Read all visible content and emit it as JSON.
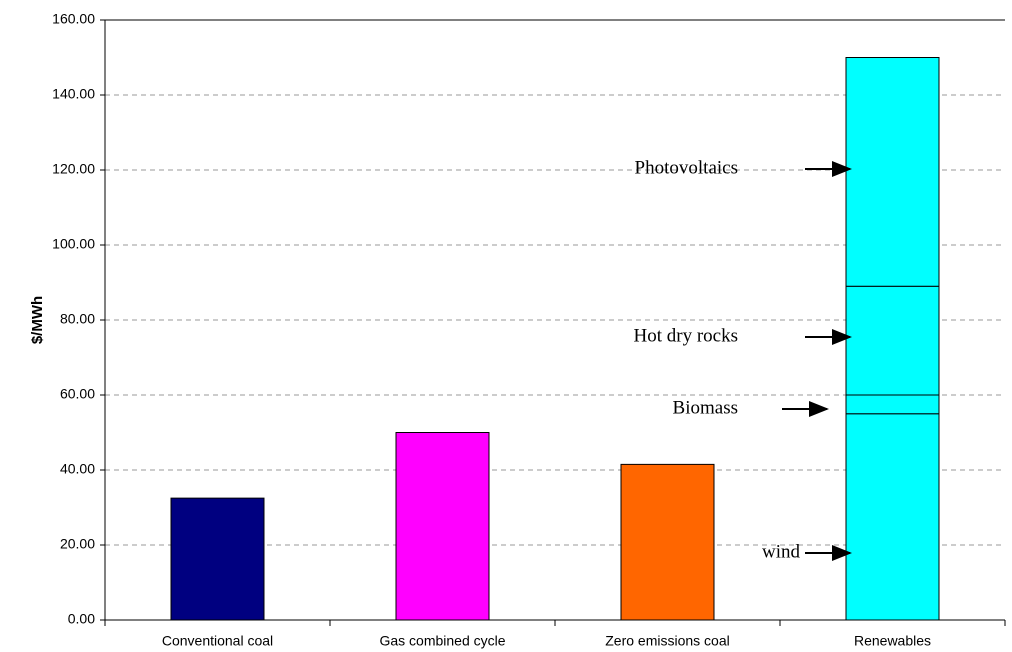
{
  "chart_data": {
    "type": "stacked-bar",
    "y_label": "$/MWh",
    "categories": [
      "Conventional coal",
      "Gas combined cycle",
      "Zero emissions coal",
      "Renewables"
    ],
    "series": [
      {
        "colors": [
          "#000080",
          "#ff00ff",
          "#ff6600",
          null
        ],
        "values": [
          32.5,
          50,
          41.5,
          null
        ]
      },
      {
        "name": "wind",
        "color": "#00ffff",
        "values": [
          null,
          null,
          null,
          55
        ]
      },
      {
        "name": "Biomass",
        "color": "#00ffff",
        "values": [
          null,
          null,
          null,
          5
        ]
      },
      {
        "name": "Hot dry rocks",
        "color": "#00ffff",
        "values": [
          null,
          null,
          null,
          29
        ]
      },
      {
        "name": "Photovoltaics",
        "color": "#00ffff",
        "values": [
          null,
          null,
          null,
          61
        ]
      }
    ],
    "ylim": [
      0,
      160
    ],
    "yticks": [
      {
        "value": 0,
        "label": "0.00"
      },
      {
        "value": 20,
        "label": "20.00"
      },
      {
        "value": 40,
        "label": "40.00"
      },
      {
        "value": 60,
        "label": "60.00"
      },
      {
        "value": 80,
        "label": "80.00"
      },
      {
        "value": 100,
        "label": "100.00"
      },
      {
        "value": 120,
        "label": "120.00"
      },
      {
        "value": 140,
        "label": "140.00"
      },
      {
        "value": 160,
        "label": "160.00"
      }
    ],
    "grid": true
  }
}
